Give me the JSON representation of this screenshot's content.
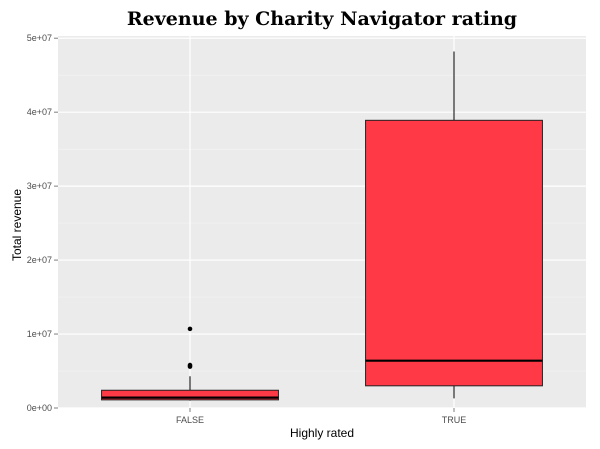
{
  "chart_data": {
    "type": "boxplot",
    "title": "Revenue by Charity Navigator rating",
    "xlabel": "Highly rated",
    "ylabel": "Total revenue",
    "categories": [
      "FALSE",
      "TRUE"
    ],
    "ylim": [
      0,
      50000000
    ],
    "y_ticks": [
      0,
      10000000,
      20000000,
      30000000,
      40000000,
      50000000
    ],
    "y_tick_labels": [
      "0e+00",
      "1e+07",
      "2e+07",
      "3e+07",
      "4e+07",
      "5e+07"
    ],
    "grid": true,
    "boxes": [
      {
        "category": "FALSE",
        "whisker_low": 1000000,
        "q1": 1100000,
        "median": 1400000,
        "q3": 2400000,
        "whisker_high": 4300000,
        "outliers": [
          5600000,
          5800000,
          10700000
        ]
      },
      {
        "category": "TRUE",
        "whisker_low": 1300000,
        "q1": 3000000,
        "median": 6400000,
        "q3": 38900000,
        "whisker_high": 48200000,
        "outliers": []
      }
    ],
    "colors": {
      "fill": "#ff3a46",
      "panel": "#ebebeb",
      "grid": "#ffffff",
      "gridMinor": "#f4f4f4"
    }
  }
}
